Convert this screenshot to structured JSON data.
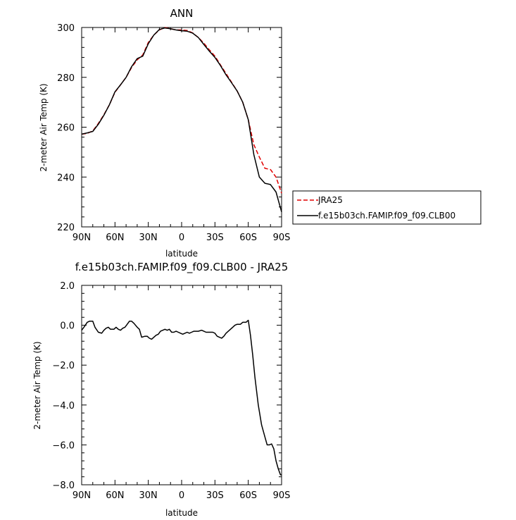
{
  "chart_data": [
    {
      "type": "line",
      "title": "ANN",
      "xlabel": "latitude",
      "ylabel": "2-meter Air Temp (K)",
      "xlim": [
        90,
        -90
      ],
      "ylim": [
        220,
        300
      ],
      "x_ticks": [
        {
          "value": 90,
          "label": "90N"
        },
        {
          "value": 60,
          "label": "60N"
        },
        {
          "value": 30,
          "label": "30N"
        },
        {
          "value": 0,
          "label": "0"
        },
        {
          "value": -30,
          "label": "30S"
        },
        {
          "value": -60,
          "label": "60S"
        },
        {
          "value": -90,
          "label": "90S"
        }
      ],
      "y_ticks": [
        {
          "value": 220,
          "label": "220"
        },
        {
          "value": 240,
          "label": "240"
        },
        {
          "value": 260,
          "label": "260"
        },
        {
          "value": 280,
          "label": "280"
        },
        {
          "value": 300,
          "label": "300"
        }
      ],
      "series": [
        {
          "name": "JRA25",
          "color": "#e00000",
          "dash": true,
          "x": [
            90,
            85,
            80,
            75,
            70,
            65,
            60,
            55,
            50,
            45,
            40,
            35,
            30,
            25,
            20,
            15,
            10,
            5,
            0,
            -5,
            -10,
            -15,
            -20,
            -25,
            -30,
            -35,
            -40,
            -45,
            -50,
            -55,
            -60,
            -65,
            -70,
            -75,
            -80,
            -85,
            -90
          ],
          "y": [
            257.2,
            257.5,
            258.5,
            261.5,
            265,
            269,
            274,
            277,
            280,
            284,
            287,
            289,
            294,
            297,
            299,
            300,
            299.5,
            299,
            299,
            298.8,
            297.8,
            296,
            293.7,
            291,
            288.5,
            285,
            281.5,
            278,
            274.5,
            270,
            263,
            253,
            248,
            243.5,
            243,
            240,
            233.5
          ]
        },
        {
          "name": "f.e15b03ch.FAMIP.f09_f09.CLB00",
          "color": "#000000",
          "dash": false,
          "x": [
            90,
            85,
            80,
            75,
            70,
            65,
            60,
            55,
            50,
            45,
            40,
            35,
            30,
            25,
            20,
            15,
            10,
            5,
            0,
            -5,
            -10,
            -15,
            -20,
            -25,
            -30,
            -35,
            -40,
            -45,
            -50,
            -55,
            -60,
            -65,
            -70,
            -75,
            -80,
            -85,
            -90
          ],
          "y": [
            257.2,
            257.7,
            258.3,
            261.2,
            264.8,
            269,
            274.2,
            277,
            280,
            284.3,
            287.5,
            288.5,
            293.5,
            297,
            299.2,
            299.8,
            299.5,
            299,
            298.7,
            298.5,
            297.7,
            296,
            293.2,
            290.5,
            288,
            284.7,
            281,
            277.8,
            274.5,
            270,
            263,
            249,
            240,
            237.5,
            237,
            234,
            226
          ]
        }
      ],
      "legend": "right"
    },
    {
      "type": "line",
      "title": "f.e15b03ch.FAMIP.f09_f09.CLB00 - JRA25",
      "xlabel": "latitude",
      "ylabel": "2-meter Air Temp (K)",
      "xlim": [
        90,
        -90
      ],
      "ylim": [
        -8,
        2
      ],
      "x_ticks": [
        {
          "value": 90,
          "label": "90N"
        },
        {
          "value": 60,
          "label": "60N"
        },
        {
          "value": 30,
          "label": "30N"
        },
        {
          "value": 0,
          "label": "0"
        },
        {
          "value": -30,
          "label": "30S"
        },
        {
          "value": -60,
          "label": "60S"
        },
        {
          "value": -90,
          "label": "90S"
        }
      ],
      "y_ticks": [
        {
          "value": -8,
          "label": "−8.0"
        },
        {
          "value": -6,
          "label": "−6.0"
        },
        {
          "value": -4,
          "label": "−4.0"
        },
        {
          "value": -2,
          "label": "−2.0"
        },
        {
          "value": 0,
          "label": "0.0"
        },
        {
          "value": 2,
          "label": "2.0"
        }
      ],
      "series": [
        {
          "name": "",
          "color": "#000000",
          "dash": false,
          "x": [
            90,
            88,
            85,
            83,
            80,
            78,
            75,
            72,
            70,
            68,
            66,
            64,
            61,
            59,
            57,
            55,
            53,
            51,
            49,
            47,
            45,
            43,
            40,
            38,
            36,
            33,
            31,
            29,
            27,
            25,
            23,
            21,
            19,
            17,
            15,
            13,
            11,
            9,
            7,
            5,
            3,
            1,
            -1,
            -3,
            -5,
            -7,
            -9,
            -11,
            -13,
            -15,
            -18,
            -20,
            -22,
            -24,
            -26,
            -28,
            -30,
            -32,
            -34,
            -36,
            -38,
            -40,
            -42,
            -44,
            -46,
            -48,
            -50,
            -53,
            -55,
            -58,
            -60,
            -62,
            -64,
            -66,
            -69,
            -72,
            -75,
            -77,
            -79,
            -81,
            -83,
            -85,
            -87,
            -89,
            -90
          ],
          "y": [
            -0.25,
            -0.1,
            0.15,
            0.2,
            0.2,
            -0.1,
            -0.35,
            -0.4,
            -0.25,
            -0.15,
            -0.1,
            -0.2,
            -0.2,
            -0.1,
            -0.2,
            -0.25,
            -0.15,
            -0.1,
            0.05,
            0.2,
            0.2,
            0.1,
            -0.1,
            -0.2,
            -0.6,
            -0.55,
            -0.55,
            -0.65,
            -0.7,
            -0.6,
            -0.5,
            -0.45,
            -0.3,
            -0.25,
            -0.2,
            -0.25,
            -0.2,
            -0.35,
            -0.35,
            -0.3,
            -0.35,
            -0.4,
            -0.45,
            -0.4,
            -0.35,
            -0.4,
            -0.35,
            -0.3,
            -0.3,
            -0.3,
            -0.25,
            -0.3,
            -0.35,
            -0.35,
            -0.35,
            -0.35,
            -0.4,
            -0.55,
            -0.6,
            -0.65,
            -0.55,
            -0.4,
            -0.3,
            -0.2,
            -0.1,
            0.0,
            0.05,
            0.05,
            0.15,
            0.15,
            0.25,
            -0.5,
            -1.5,
            -2.6,
            -4.0,
            -5.0,
            -5.6,
            -6.0,
            -6.0,
            -5.95,
            -6.2,
            -6.8,
            -7.2,
            -7.5,
            -7.5
          ]
        }
      ]
    }
  ]
}
